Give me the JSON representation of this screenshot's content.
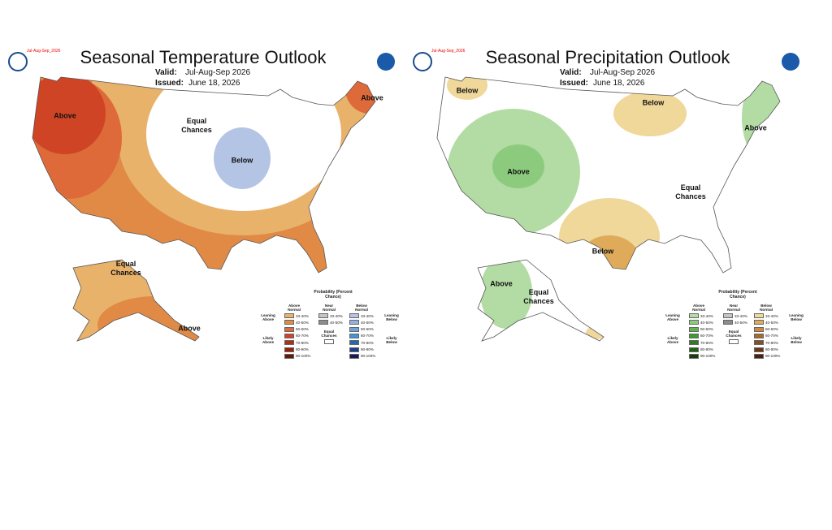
{
  "panels": [
    {
      "tag": "Jul-Aug-Sep_2026",
      "title": "Seasonal Temperature Outlook",
      "valid_label": "Valid:",
      "valid": "Jul-Aug-Sep 2026",
      "issued_label": "Issued:",
      "issued": "June 18, 2026",
      "regions": [
        "Above",
        "Equal Chances",
        "Below",
        "Above",
        "Equal Chances",
        "Above"
      ],
      "legend": {
        "title": "Probability (Percent Chance)",
        "above_header": "Above Normal",
        "near_header": "Near Normal",
        "below_header": "Below Normal",
        "leaning_above": "Leaning Above",
        "likely_above": "Likely Above",
        "leaning_below": "Leaning Below",
        "likely_below": "Likely Below",
        "equal_chances": "Equal Chances",
        "above_ranges": [
          "33-40%",
          "40-50%",
          "50-60%",
          "60-70%",
          "70-80%",
          "80-90%",
          "90-100%"
        ],
        "near_ranges": [
          "33-40%",
          "40-50%"
        ],
        "below_ranges": [
          "33-40%",
          "40-50%",
          "50-60%",
          "60-70%",
          "70-80%",
          "80-90%",
          "90-100%"
        ],
        "above_colors": [
          "#e9b26a",
          "#e08a45",
          "#de6a3a",
          "#cf4424",
          "#b52e12",
          "#962209",
          "#661804"
        ],
        "near_colors": [
          "#c4c4c4",
          "#8c8c8c"
        ],
        "below_colors": [
          "#b3c4e4",
          "#93b3df",
          "#6ea4dc",
          "#4592d4",
          "#2568b2",
          "#1d408c",
          "#1a1a5a"
        ]
      }
    },
    {
      "tag": "Jul-Aug-Sep_2026",
      "title": "Seasonal Precipitation Outlook",
      "valid_label": "Valid:",
      "valid": "Jul-Aug-Sep 2026",
      "issued_label": "Issued:",
      "issued": "June 18, 2026",
      "regions": [
        "Below",
        "Below",
        "Above",
        "Above",
        "Equal Chances",
        "Below",
        "Above",
        "Equal Chances"
      ],
      "legend": {
        "title": "Probability (Percent Chance)",
        "above_header": "Above Normal",
        "near_header": "Near Normal",
        "below_header": "Below Normal",
        "leaning_above": "Leaning Above",
        "likely_above": "Likely Above",
        "leaning_below": "Leaning Below",
        "likely_below": "Likely Below",
        "equal_chances": "Equal Chances",
        "above_ranges": [
          "33-40%",
          "40-50%",
          "50-60%",
          "60-70%",
          "70-80%",
          "80-90%",
          "90-100%"
        ],
        "near_ranges": [
          "33-40%",
          "40-50%"
        ],
        "below_ranges": [
          "33-40%",
          "40-50%",
          "50-60%",
          "60-70%",
          "70-80%",
          "80-90%",
          "90-100%"
        ],
        "above_colors": [
          "#b2dca3",
          "#8ccb7d",
          "#5fb44e",
          "#3e9a2f",
          "#2c7f1e",
          "#1f6113",
          "#124008"
        ],
        "near_colors": [
          "#c4c4c4",
          "#8c8c8c"
        ],
        "below_colors": [
          "#f0d79a",
          "#dfab5a",
          "#d08a3c",
          "#a86a2c",
          "#8a4f1f",
          "#6a3713",
          "#4a220b"
        ]
      }
    }
  ]
}
